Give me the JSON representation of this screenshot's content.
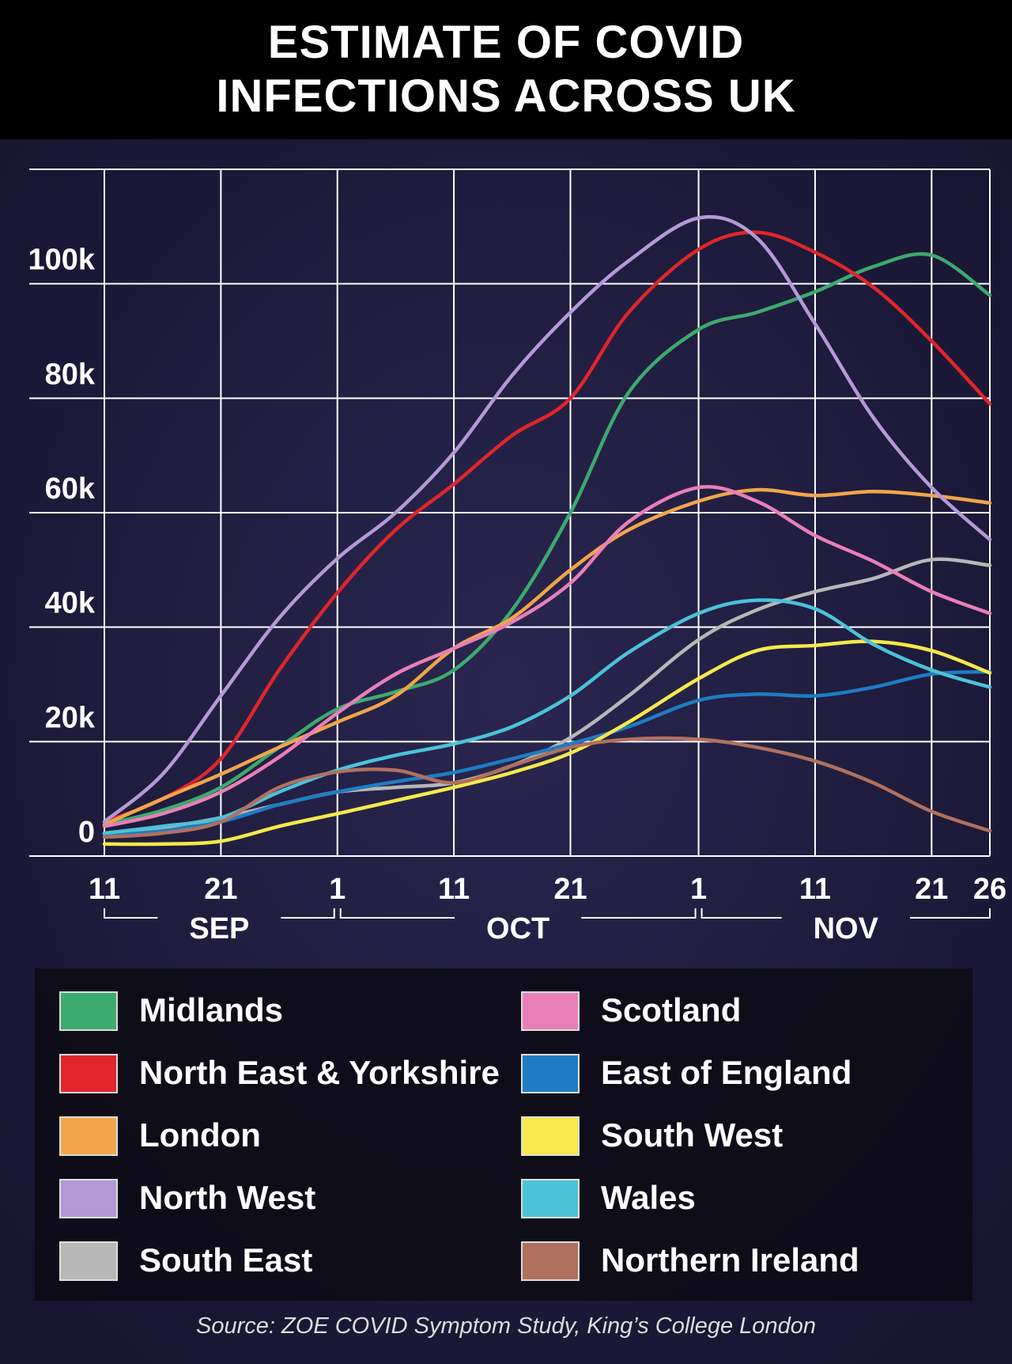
{
  "chart_data": {
    "type": "line",
    "title": "ESTIMATE OF COVID INFECTIONS ACROSS UK",
    "source": "Source: ZOE COVID Symptom Study, King’s College London",
    "x": [
      "Sep 11",
      "Sep 16",
      "Sep 21",
      "Sep 26",
      "Oct 1",
      "Oct 6",
      "Oct 11",
      "Oct 16",
      "Oct 21",
      "Oct 26",
      "Nov 1",
      "Nov 6",
      "Nov 11",
      "Nov 16",
      "Nov 21",
      "Nov 26"
    ],
    "xlim": [
      "Sep 11",
      "Nov 26"
    ],
    "xticks": [
      {
        "value": "Sep 11",
        "label": "11"
      },
      {
        "value": "Sep 21",
        "label": "21"
      },
      {
        "value": "Oct 1",
        "label": "1"
      },
      {
        "value": "Oct 11",
        "label": "11"
      },
      {
        "value": "Oct 21",
        "label": "21"
      },
      {
        "value": "Nov 1",
        "label": "1"
      },
      {
        "value": "Nov 11",
        "label": "11"
      },
      {
        "value": "Nov 21",
        "label": "21"
      },
      {
        "value": "Nov 26",
        "label": "26"
      }
    ],
    "months": [
      "SEP",
      "OCT",
      "NOV"
    ],
    "ylim": [
      0,
      120000
    ],
    "yticks": [
      {
        "value": 0,
        "label": "0"
      },
      {
        "value": 20000,
        "label": "20k"
      },
      {
        "value": 40000,
        "label": "40k"
      },
      {
        "value": 60000,
        "label": "60k"
      },
      {
        "value": 80000,
        "label": "80k"
      },
      {
        "value": 100000,
        "label": "100k"
      }
    ],
    "grid": true,
    "series": [
      {
        "name": "Midlands",
        "color": "#3daa6e",
        "values": [
          5500,
          8000,
          12000,
          19000,
          25700,
          28700,
          32500,
          43000,
          60000,
          81000,
          92000,
          95000,
          98600,
          103000,
          105000,
          98000
        ]
      },
      {
        "name": "North East & Yorkshire",
        "color": "#e0262a",
        "values": [
          6000,
          10000,
          17000,
          32500,
          46000,
          57000,
          65000,
          73500,
          80000,
          95000,
          106000,
          109000,
          105500,
          99400,
          90000,
          79000
        ]
      },
      {
        "name": "London",
        "color": "#f0a54a",
        "values": [
          5500,
          10000,
          14300,
          19000,
          23400,
          28000,
          36300,
          41600,
          50000,
          57000,
          62000,
          64000,
          63000,
          63700,
          63000,
          61700
        ]
      },
      {
        "name": "North West",
        "color": "#b39ad6",
        "values": [
          6000,
          14300,
          28000,
          41600,
          52000,
          60000,
          70500,
          84000,
          95000,
          104000,
          111500,
          108000,
          93000,
          76600,
          64400,
          55300
        ]
      },
      {
        "name": "South East",
        "color": "#b7b7b7",
        "values": [
          4000,
          5000,
          6700,
          9000,
          11200,
          12000,
          12800,
          15800,
          20700,
          28000,
          37800,
          43000,
          46200,
          48500,
          51800,
          50800
        ]
      },
      {
        "name": "Scotland",
        "color": "#e87fb8",
        "values": [
          5200,
          7400,
          11200,
          17300,
          25000,
          31800,
          36300,
          40900,
          47700,
          58400,
          64400,
          62000,
          56000,
          51500,
          46200,
          42400
        ]
      },
      {
        "name": "East of England",
        "color": "#1f7cc4",
        "values": [
          3600,
          4400,
          6000,
          9000,
          11200,
          13000,
          14600,
          17000,
          19600,
          22600,
          27200,
          28300,
          28000,
          29500,
          31800,
          32200
        ]
      },
      {
        "name": "South West",
        "color": "#f6e94b",
        "values": [
          2100,
          2100,
          2600,
          5200,
          7400,
          9700,
          12000,
          14600,
          18000,
          23400,
          31000,
          35900,
          36800,
          37500,
          35900,
          32000
        ]
      },
      {
        "name": "Wales",
        "color": "#4cc2d8",
        "values": [
          4000,
          5200,
          6700,
          11200,
          15000,
          17600,
          19600,
          22600,
          28000,
          35600,
          42400,
          44700,
          43200,
          37000,
          32500,
          29500
        ]
      },
      {
        "name": "Northern Ireland",
        "color": "#b0705e",
        "values": [
          3300,
          4000,
          6000,
          12000,
          14700,
          15000,
          12800,
          15800,
          19000,
          20400,
          20400,
          19000,
          16600,
          12800,
          7800,
          4400
        ]
      }
    ]
  }
}
